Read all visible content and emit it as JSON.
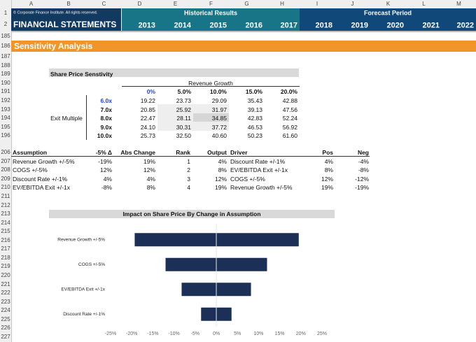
{
  "columns": [
    "A",
    "B",
    "C",
    "D",
    "E",
    "F",
    "G",
    "H",
    "I",
    "J",
    "K",
    "L",
    "M"
  ],
  "rows": [
    "1",
    "2",
    "185",
    "186",
    "187",
    "188",
    "189",
    "190",
    "191",
    "192",
    "193",
    "194",
    "195",
    "196",
    "206",
    "207",
    "208",
    "209",
    "210",
    "211",
    "212",
    "213",
    "214",
    "215",
    "216",
    "217",
    "218",
    "219",
    "220",
    "221",
    "222",
    "223",
    "224",
    "225",
    "226",
    "227"
  ],
  "header": {
    "copyright": "© Corporate Finance Institute. All rights reserved.",
    "title": "FINANCIAL STATEMENTS",
    "historical_label": "Historical Results",
    "forecast_label": "Forecast Period",
    "years": [
      "2013",
      "2014",
      "2015",
      "2016",
      "2017",
      "2018",
      "2019",
      "2020",
      "2021",
      "2022"
    ]
  },
  "section_title": "Sensitivity Analysis",
  "sensitivity": {
    "title": "Share Price Senstivity",
    "col_label": "Revenue Growth",
    "row_label": "Exit Multiple",
    "col_headers": [
      "0%",
      "5.0%",
      "10.0%",
      "15.0%",
      "20.0%"
    ],
    "row_headers": [
      "6.0x",
      "7.0x",
      "8.0x",
      "9.0x",
      "10.0x"
    ],
    "values": [
      [
        "19.22",
        "23.73",
        "29.09",
        "35.43",
        "42.88"
      ],
      [
        "20.85",
        "25.92",
        "31.97",
        "39.13",
        "47.56"
      ],
      [
        "22.47",
        "28.11",
        "34.85",
        "42.83",
        "52.24"
      ],
      [
        "24.10",
        "30.31",
        "37.72",
        "46.53",
        "56.92"
      ],
      [
        "25.73",
        "32.50",
        "40.60",
        "50.23",
        "61.60"
      ]
    ]
  },
  "assumptions": {
    "headers": [
      "Assumption",
      "-5% Δ",
      "Abs Change",
      "Rank",
      "Output",
      "Driver",
      "Pos",
      "Neg"
    ],
    "rows": [
      [
        "Revenue Growth +/-5%",
        "-19%",
        "19%",
        "1",
        "4%",
        "Discount Rate +/-1%",
        "4%",
        "-4%"
      ],
      [
        "COGS +/-5%",
        "12%",
        "12%",
        "2",
        "8%",
        "EV/EBITDA Exit +/-1x",
        "8%",
        "-8%"
      ],
      [
        "Discount Rate +/-1%",
        "4%",
        "4%",
        "3",
        "12%",
        "COGS +/-5%",
        "12%",
        "-12%"
      ],
      [
        "EV/EBITDA Exit +/-1x",
        "-8%",
        "8%",
        "4",
        "19%",
        "Revenue Growth +/-5%",
        "19%",
        "-19%"
      ]
    ]
  },
  "chart": {
    "type": "bar",
    "title": "Impact on Share Price By Change in Assumption",
    "categories": [
      "Revenue Growth +/-5%",
      "COGS +/-5%",
      "EV/EBITDA Exit +/-1x",
      "Discount Rate +/-1%"
    ],
    "series": [
      {
        "color": "#1b2f57",
        "values": [
          -19.3,
          -12,
          -8.2,
          -3.6
        ]
      },
      {
        "color": "#1b2f57",
        "values": [
          19.5,
          12,
          8.2,
          3.6
        ]
      }
    ],
    "xlim": [
      -25,
      25
    ],
    "xticks": [
      {
        "value": -25,
        "label": "-25%"
      },
      {
        "value": -20,
        "label": "-20%"
      },
      {
        "value": -15,
        "label": "-15%"
      },
      {
        "value": -10,
        "label": "-10%"
      },
      {
        "value": -5,
        "label": "-5%"
      },
      {
        "value": 0,
        "label": "0%"
      },
      {
        "value": 5,
        "label": "5%"
      },
      {
        "value": 10,
        "label": "10%"
      },
      {
        "value": 15,
        "label": "15%"
      },
      {
        "value": 20,
        "label": "20%"
      },
      {
        "value": 25,
        "label": "25%"
      }
    ]
  }
}
